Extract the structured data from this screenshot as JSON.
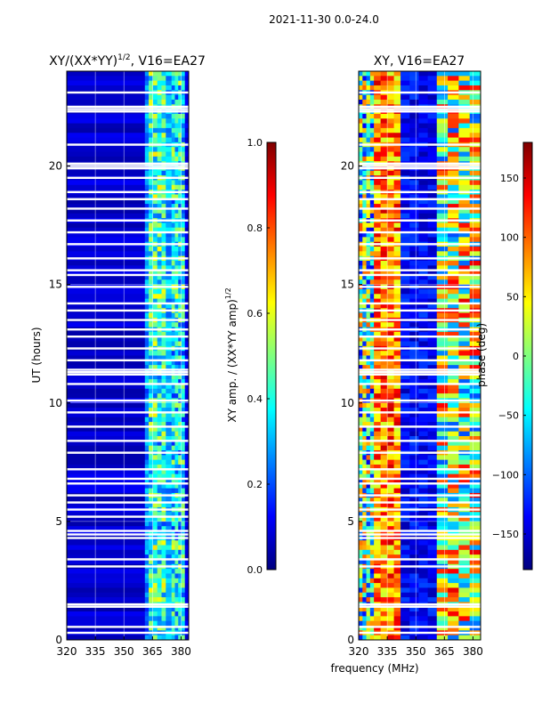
{
  "suptitle": "2021-11-30 0.0-24.0",
  "colors": {
    "jet_stops": [
      "#00007f",
      "#0000ff",
      "#007fff",
      "#00ffff",
      "#7fff7f",
      "#ffff00",
      "#ff7f00",
      "#ff0000",
      "#7f0000"
    ],
    "gap": "#ffffff",
    "axis": "#000000"
  },
  "chart_data": [
    {
      "type": "heatmap",
      "title_main": "XY/(XX*YY)",
      "title_exp": "1/2",
      "title_tail": ", V16=EA27",
      "xlabel": "",
      "ylabel": "UT (hours)",
      "xlim": [
        320,
        384
      ],
      "ylim": [
        0,
        24
      ],
      "xticks": [
        320,
        335,
        350,
        365,
        380
      ],
      "yticks": [
        0,
        5,
        10,
        15,
        20
      ],
      "grid": true,
      "colorbar": {
        "label_main": "XY amp. / (XX*YY amp)",
        "label_exp": "1/2",
        "range": [
          0.0,
          1.0
        ],
        "ticks": [
          "0.0",
          "0.2",
          "0.4",
          "0.6",
          "0.8",
          "1.0"
        ],
        "tick_values": [
          0.0,
          0.2,
          0.4,
          0.6,
          0.8,
          1.0
        ]
      },
      "bands": [
        {
          "from_mhz": 320,
          "to_mhz": 361,
          "level": 0.08,
          "texture": "low-noise"
        },
        {
          "from_mhz": 361,
          "to_mhz": 363,
          "level": 0.25,
          "texture": "moderate"
        },
        {
          "from_mhz": 363,
          "to_mhz": 372,
          "level": 0.42,
          "texture": "striped-high"
        },
        {
          "from_mhz": 372,
          "to_mhz": 375,
          "level": 0.3,
          "texture": "moderate"
        },
        {
          "from_mhz": 375,
          "to_mhz": 382,
          "level": 0.38,
          "texture": "striped-high"
        },
        {
          "from_mhz": 382,
          "to_mhz": 384,
          "level": 0.1,
          "texture": "low-noise"
        }
      ]
    },
    {
      "type": "heatmap",
      "title_main": "XY, V16=EA27",
      "xlabel": "frequency (MHz)",
      "ylabel": "",
      "xlim": [
        320,
        384
      ],
      "ylim": [
        0,
        24
      ],
      "xticks": [
        320,
        335,
        350,
        365,
        380
      ],
      "yticks": [
        0,
        5,
        10,
        15,
        20
      ],
      "grid": true,
      "colorbar": {
        "label_main": "phase (deg)",
        "range": [
          -180,
          180
        ],
        "ticks": [
          "−150",
          "−100",
          "−50",
          "0",
          "50",
          "100",
          "150"
        ],
        "tick_values": [
          -150,
          -100,
          -50,
          0,
          50,
          100,
          150
        ]
      },
      "bands": [
        {
          "from_mhz": 320,
          "to_mhz": 328,
          "level": 0.45,
          "texture": "phase-mixed"
        },
        {
          "from_mhz": 328,
          "to_mhz": 342,
          "level": 0.75,
          "texture": "phase-hot"
        },
        {
          "from_mhz": 342,
          "to_mhz": 361,
          "level": 0.12,
          "texture": "phase-cool"
        },
        {
          "from_mhz": 361,
          "to_mhz": 384,
          "level": 0.55,
          "texture": "phase-mixed"
        }
      ]
    }
  ],
  "flagged_hours": [
    0.3,
    0.55,
    1.4,
    1.5,
    3.1,
    3.4,
    4.3,
    4.45,
    4.6,
    5.2,
    5.5,
    5.8,
    6.1,
    6.6,
    6.8,
    7.2,
    7.9,
    8.4,
    9.0,
    9.6,
    10.1,
    10.8,
    11.2,
    11.3,
    11.4,
    11.8,
    12.3,
    12.8,
    13.1,
    13.5,
    13.9,
    14.2,
    14.9,
    15.4,
    15.6,
    16.1,
    16.7,
    17.2,
    17.7,
    18.2,
    18.6,
    18.9,
    19.5,
    19.9,
    20.0,
    20.1,
    20.9,
    22.3,
    22.4,
    22.5,
    23.1
  ]
}
